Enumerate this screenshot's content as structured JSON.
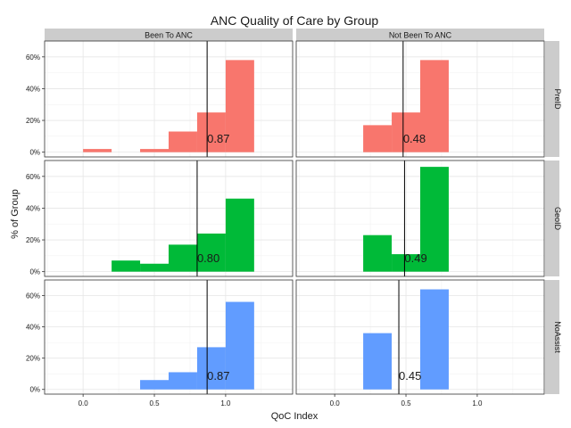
{
  "chart_data": {
    "type": "bar",
    "title": "ANC Quality of Care by Group",
    "xlabel": "QoC Index",
    "ylabel": "% of Group",
    "x_ticks": [
      0.0,
      0.5,
      1.0
    ],
    "x_tick_labels": [
      "0.0",
      "0.5",
      "1.0"
    ],
    "xlim": [
      -0.27,
      1.47
    ],
    "y_ticks": [
      0,
      20,
      40,
      60
    ],
    "y_tick_labels": [
      "0%",
      "20%",
      "40%",
      "60%"
    ],
    "ylim": [
      -3,
      70
    ],
    "bin_width": 0.2,
    "columns": [
      "Been To ANC",
      "Not Been To ANC"
    ],
    "rows": [
      "PreID",
      "GeoID",
      "NoAssist"
    ],
    "colors": {
      "PreID": "#F8766D",
      "GeoID": "#00BA38",
      "NoAssist": "#619CFF"
    },
    "panels": [
      {
        "column": "Been To ANC",
        "row": "PreID",
        "mean_label": "0.87",
        "mean": 0.87,
        "bars": [
          {
            "x": 0.0,
            "value": 2
          },
          {
            "x": 0.4,
            "value": 2
          },
          {
            "x": 0.6,
            "value": 13
          },
          {
            "x": 0.8,
            "value": 25
          },
          {
            "x": 1.0,
            "value": 58
          }
        ]
      },
      {
        "column": "Not Been To ANC",
        "row": "PreID",
        "mean_label": "0.48",
        "mean": 0.48,
        "bars": [
          {
            "x": 0.2,
            "value": 17
          },
          {
            "x": 0.4,
            "value": 25
          },
          {
            "x": 0.6,
            "value": 58
          }
        ]
      },
      {
        "column": "Been To ANC",
        "row": "GeoID",
        "mean_label": "0.80",
        "mean": 0.8,
        "bars": [
          {
            "x": 0.2,
            "value": 7
          },
          {
            "x": 0.4,
            "value": 5
          },
          {
            "x": 0.6,
            "value": 17
          },
          {
            "x": 0.8,
            "value": 24
          },
          {
            "x": 1.0,
            "value": 46
          }
        ]
      },
      {
        "column": "Not Been To ANC",
        "row": "GeoID",
        "mean_label": "0.49",
        "mean": 0.49,
        "bars": [
          {
            "x": 0.2,
            "value": 23
          },
          {
            "x": 0.4,
            "value": 11
          },
          {
            "x": 0.6,
            "value": 66
          }
        ]
      },
      {
        "column": "Been To ANC",
        "row": "NoAssist",
        "mean_label": "0.87",
        "mean": 0.87,
        "bars": [
          {
            "x": 0.4,
            "value": 6
          },
          {
            "x": 0.6,
            "value": 11
          },
          {
            "x": 0.8,
            "value": 27
          },
          {
            "x": 1.0,
            "value": 56
          }
        ]
      },
      {
        "column": "Not Been To ANC",
        "row": "NoAssist",
        "mean_label": "0.45",
        "mean": 0.45,
        "bars": [
          {
            "x": 0.2,
            "value": 36
          },
          {
            "x": 0.6,
            "value": 64
          }
        ]
      }
    ]
  }
}
